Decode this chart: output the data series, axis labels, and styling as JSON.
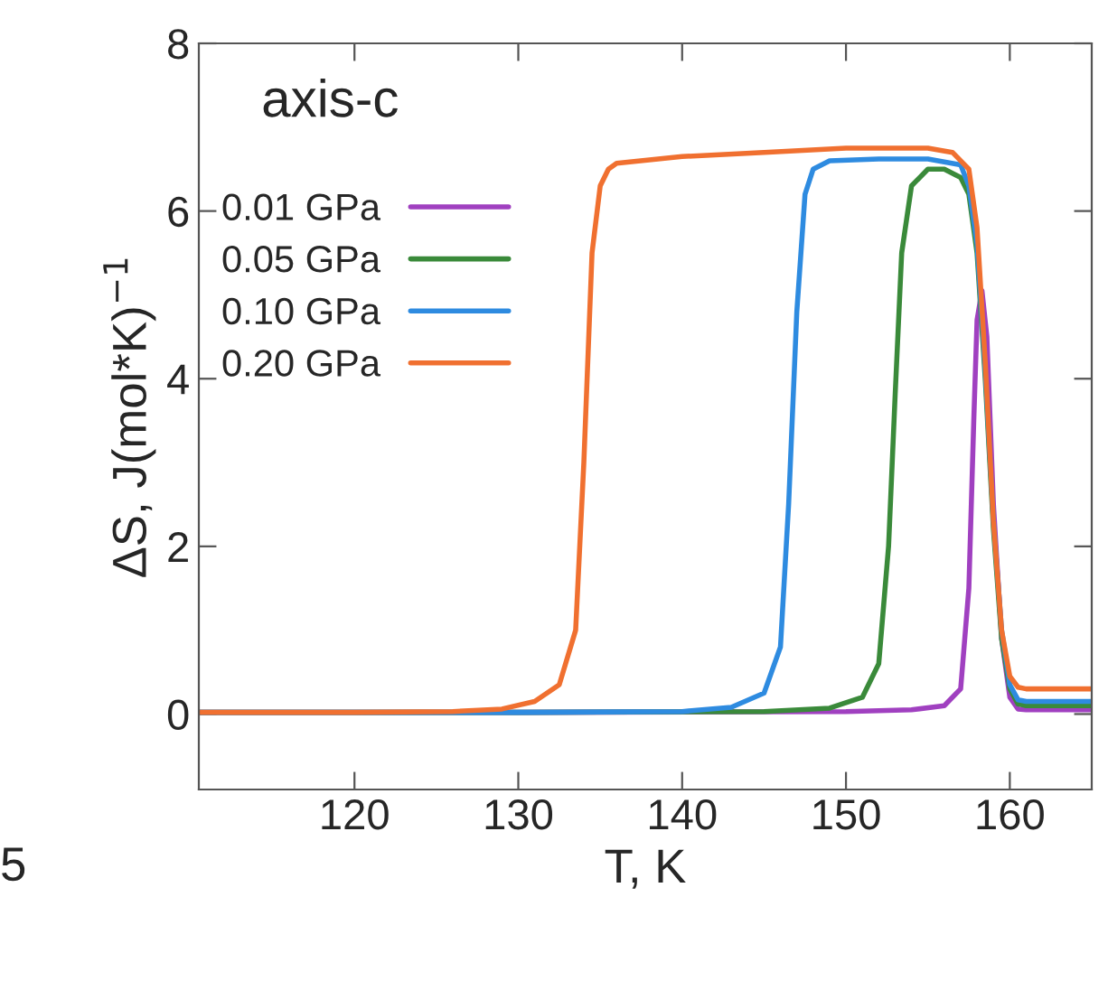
{
  "chart_data": {
    "type": "line",
    "xlabel": "T, K",
    "ylabel": "ΔS, J(mol*K)$^{−1}$",
    "xlim": [
      110.5,
      165
    ],
    "ylim": [
      -0.9,
      8
    ],
    "xticks": [
      120,
      130,
      140,
      150,
      160
    ],
    "yticks": [
      0,
      2,
      4,
      6,
      8
    ],
    "grid": false,
    "legend": "top left",
    "line_style": "solid",
    "marker": "none",
    "annotations": [
      "axis-c",
      "5"
    ],
    "series": [
      {
        "name": "0.01 GPa",
        "color": "#a040c0",
        "x": [
          110.5,
          130,
          150,
          154,
          156,
          157,
          157.5,
          157.8,
          158,
          158.3,
          158.6,
          159,
          159.5,
          160,
          160.5,
          161,
          165
        ],
        "values": [
          0.02,
          0.02,
          0.03,
          0.05,
          0.1,
          0.3,
          1.5,
          3.5,
          4.7,
          5.05,
          4.5,
          2.5,
          0.9,
          0.2,
          0.06,
          0.05,
          0.05
        ]
      },
      {
        "name": "0.05 GPa",
        "color": "#3a8a3a",
        "x": [
          110.5,
          130,
          145,
          149,
          151,
          152,
          152.6,
          153,
          153.4,
          154,
          155,
          156,
          157,
          157.5,
          158,
          158.5,
          159,
          159.5,
          160,
          160.5,
          161,
          165
        ],
        "values": [
          0.02,
          0.02,
          0.03,
          0.07,
          0.2,
          0.6,
          2,
          3.8,
          5.5,
          6.3,
          6.5,
          6.5,
          6.4,
          6.2,
          5.5,
          4,
          2.2,
          0.9,
          0.3,
          0.12,
          0.1,
          0.1
        ]
      },
      {
        "name": "0.10 GPa",
        "color": "#2e8be0",
        "x": [
          110.5,
          130,
          140,
          143,
          145,
          146,
          146.5,
          147,
          147.5,
          148,
          149,
          152,
          155,
          157,
          157.5,
          158,
          158.5,
          159,
          159.5,
          160,
          160.5,
          161,
          165
        ],
        "values": [
          0.02,
          0.02,
          0.03,
          0.08,
          0.25,
          0.8,
          2.5,
          4.8,
          6.2,
          6.5,
          6.6,
          6.62,
          6.62,
          6.55,
          6.3,
          5.6,
          4.1,
          2.3,
          1,
          0.35,
          0.17,
          0.15,
          0.15
        ]
      },
      {
        "name": "0.20 GPa",
        "color": "#f07030",
        "x": [
          110.5,
          120,
          126,
          129,
          131,
          132.5,
          133.5,
          134,
          134.5,
          135,
          135.5,
          136,
          140,
          145,
          150,
          155,
          156.5,
          157.5,
          158,
          158.5,
          159,
          159.5,
          160,
          160.5,
          161,
          165
        ],
        "values": [
          0.02,
          0.02,
          0.03,
          0.06,
          0.15,
          0.35,
          1,
          3,
          5.5,
          6.3,
          6.5,
          6.57,
          6.65,
          6.7,
          6.75,
          6.75,
          6.7,
          6.5,
          5.8,
          4.2,
          2.3,
          1,
          0.45,
          0.32,
          0.3,
          0.3
        ]
      }
    ]
  }
}
